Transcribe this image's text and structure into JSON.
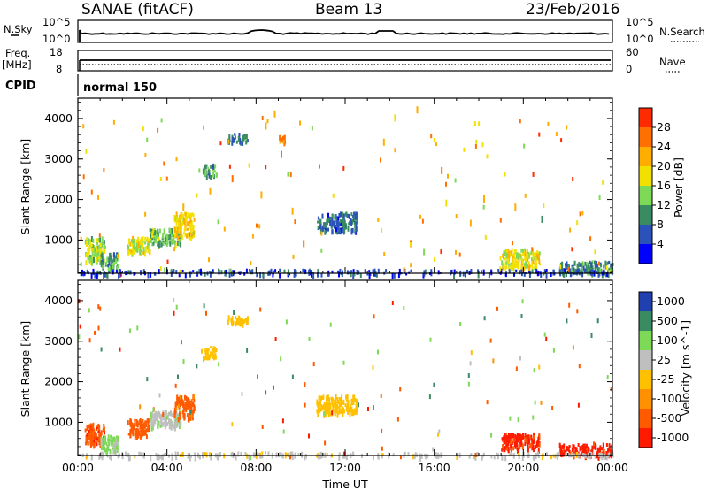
{
  "header": {
    "station": "SANAE (fitACF)",
    "beam": "Beam 13",
    "date": "23/Feb/2016"
  },
  "top_panels": {
    "nsky_label": "N.Sky",
    "nsearch_label": "N.Search",
    "noise_ticks_left": [
      "10^5",
      "10^0"
    ],
    "noise_ticks_right": [
      "10^5",
      "10^0"
    ],
    "freq_label": "Freq.",
    "freq_unit": "[MHz]",
    "freq_ticks": [
      "18",
      "8"
    ],
    "nave_label": "Nave",
    "nave_ticks": [
      "60",
      "0"
    ],
    "cpid_label": "CPID",
    "cpid_value": "normal 150"
  },
  "chart_data": [
    {
      "type": "heatmap",
      "name": "power",
      "title": "",
      "xlabel": "",
      "ylabel": "Slant Range [km]",
      "xlim": [
        0,
        24
      ],
      "ylim": [
        180,
        4500
      ],
      "ytick_labels": [
        "1000",
        "2000",
        "3000",
        "4000"
      ],
      "yticks": [
        1000,
        2000,
        3000,
        4000
      ],
      "colorbar": {
        "label": "Power [dB]",
        "ticks": [
          "4",
          "8",
          "12",
          "16",
          "20",
          "24",
          "28"
        ],
        "tick_values": [
          4,
          8,
          12,
          16,
          20,
          24,
          28
        ],
        "range": [
          0,
          30
        ],
        "colors": [
          "#0000ff",
          "#2a52b8",
          "#3a8a62",
          "#7ed957",
          "#f2e100",
          "#ffae00",
          "#ff7000",
          "#ff2a00"
        ]
      },
      "scatter_regions": [
        {
          "x": [
            0.3,
            1.2
          ],
          "y": [
            500,
            1100
          ],
          "value": 14
        },
        {
          "x": [
            1.0,
            1.8
          ],
          "y": [
            300,
            700
          ],
          "value": 10
        },
        {
          "x": [
            2.2,
            3.2
          ],
          "y": [
            700,
            1100
          ],
          "value": 16
        },
        {
          "x": [
            3.2,
            4.6
          ],
          "y": [
            900,
            1300
          ],
          "value": 12
        },
        {
          "x": [
            4.3,
            5.2
          ],
          "y": [
            1100,
            1700
          ],
          "value": 18
        },
        {
          "x": [
            5.6,
            6.2
          ],
          "y": [
            2600,
            2900
          ],
          "value": 10
        },
        {
          "x": [
            6.7,
            7.6
          ],
          "y": [
            3450,
            3650
          ],
          "value": 8
        },
        {
          "x": [
            9.0,
            9.3
          ],
          "y": [
            3400,
            3600
          ],
          "value": 22
        },
        {
          "x": [
            10.7,
            12.5
          ],
          "y": [
            1250,
            1700
          ],
          "value": 7
        },
        {
          "x": [
            19.0,
            20.7
          ],
          "y": [
            350,
            800
          ],
          "value": 17
        },
        {
          "x": [
            21.6,
            24.0
          ],
          "y": [
            200,
            500
          ],
          "value": 9
        },
        {
          "x": [
            0.0,
            24.0
          ],
          "y": [
            180,
            300
          ],
          "value": 5
        }
      ],
      "scattered_echoes": [
        {
          "x": 4.7,
          "y": 1900,
          "value": 20
        },
        {
          "x": 5.9,
          "y": 2300,
          "value": 22
        },
        {
          "x": 6.9,
          "y": 2600,
          "value": 24
        },
        {
          "x": 8.2,
          "y": 2200,
          "value": 22
        },
        {
          "x": 8.4,
          "y": 3900,
          "value": 22
        },
        {
          "x": 8.8,
          "y": 4200,
          "value": 20
        },
        {
          "x": 9.1,
          "y": 3200,
          "value": 26
        },
        {
          "x": 9.6,
          "y": 1800,
          "value": 22
        },
        {
          "x": 10.1,
          "y": 1000,
          "value": 24
        },
        {
          "x": 13.7,
          "y": 3500,
          "value": 20
        },
        {
          "x": 14.2,
          "y": 4100,
          "value": 16
        },
        {
          "x": 15.2,
          "y": 4300,
          "value": 20
        },
        {
          "x": 14.9,
          "y": 1000,
          "value": 26
        },
        {
          "x": 16.3,
          "y": 2800,
          "value": 24
        },
        {
          "x": 17.6,
          "y": 1500,
          "value": 20
        },
        {
          "x": 18.2,
          "y": 2100,
          "value": 22
        },
        {
          "x": 19.6,
          "y": 1900,
          "value": 22
        },
        {
          "x": 20.8,
          "y": 1600,
          "value": 10
        },
        {
          "x": 15.5,
          "y": 800,
          "value": 12
        },
        {
          "x": 16.5,
          "y": 2000,
          "value": 16
        }
      ]
    },
    {
      "type": "heatmap",
      "name": "velocity",
      "title": "",
      "xlabel": "Time UT",
      "ylabel": "Slant Range [km]",
      "xlim": [
        0,
        24
      ],
      "ylim": [
        180,
        4500
      ],
      "xtick_labels": [
        "00:00",
        "04:00",
        "08:00",
        "12:00",
        "16:00",
        "20:00",
        "00:00"
      ],
      "xticks": [
        0,
        4,
        8,
        12,
        16,
        20,
        24
      ],
      "ytick_labels": [
        "1000",
        "2000",
        "3000",
        "4000"
      ],
      "yticks": [
        1000,
        2000,
        3000,
        4000
      ],
      "colorbar": {
        "label": "Velocity [m s^-1]",
        "ticks": [
          "1000",
          "500",
          "100",
          "25",
          "-25",
          "-100",
          "-500",
          "-1000"
        ],
        "tick_values": [
          1000,
          500,
          100,
          25,
          -25,
          -100,
          -500,
          -1000
        ],
        "colors": [
          "#2040b0",
          "#3a8a62",
          "#7ed957",
          "#bfbfbf",
          "#ffc000",
          "#ff9000",
          "#ff5a00",
          "#ff1a00"
        ]
      },
      "scatter_regions": [
        {
          "x": [
            0.3,
            1.2
          ],
          "y": [
            500,
            1000
          ],
          "value": -400
        },
        {
          "x": [
            1.0,
            1.8
          ],
          "y": [
            300,
            700
          ],
          "value": 150
        },
        {
          "x": [
            2.2,
            3.2
          ],
          "y": [
            700,
            1100
          ],
          "value": -200
        },
        {
          "x": [
            3.2,
            4.6
          ],
          "y": [
            900,
            1300
          ],
          "value": 80
        },
        {
          "x": [
            4.3,
            5.2
          ],
          "y": [
            1100,
            1700
          ],
          "value": -150
        },
        {
          "x": [
            5.6,
            6.2
          ],
          "y": [
            2600,
            2900
          ],
          "value": 0
        },
        {
          "x": [
            6.7,
            7.6
          ],
          "y": [
            3450,
            3650
          ],
          "value": 0
        },
        {
          "x": [
            10.7,
            12.5
          ],
          "y": [
            1250,
            1700
          ],
          "value": 0
        },
        {
          "x": [
            19.0,
            20.7
          ],
          "y": [
            350,
            750
          ],
          "value": -600
        },
        {
          "x": [
            21.6,
            24.0
          ],
          "y": [
            200,
            500
          ],
          "value": -700
        },
        {
          "x": [
            0.0,
            24.0
          ],
          "y": [
            180,
            280
          ],
          "value": 50
        }
      ]
    }
  ]
}
